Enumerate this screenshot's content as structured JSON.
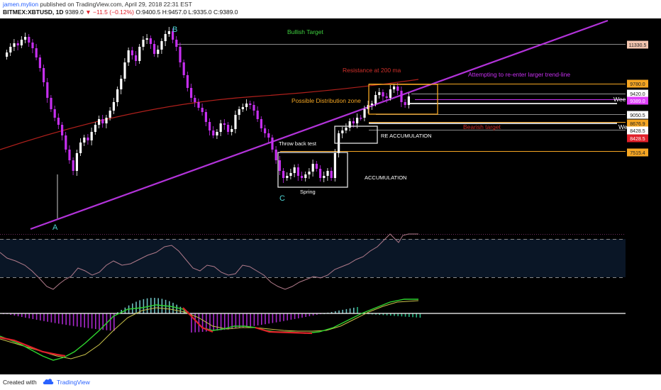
{
  "header": {
    "author": "jamen.mylion",
    "published": "published on TradingView.com, April 29, 2018 22:31 EST",
    "symbol": "BITMEX:XBTUSD, 1D",
    "last": "9389.0",
    "change": "−11.5 (−0.12%)",
    "ohlc": "O:9400.5 H:9457.0 L:9335.0 C:9389.0"
  },
  "annotations": {
    "bullish_target": "Bullish Target",
    "resistance": "Resistance at 200 ma",
    "reenter": "Attempting to re-enter larger trend-line",
    "distribution": "Possible Distribution zone",
    "bearish_target": "Bearish target",
    "re_accumulation": "RE ACCUMULATION",
    "accumulation": "ACCUMULATION",
    "throwback": "Throw back test",
    "spring": "Spring",
    "point_a": "A",
    "point_b": "B",
    "point_c": "C",
    "wee1": "Wee",
    "wee2": "We"
  },
  "price_labels": [
    {
      "text": "11330.5",
      "color": "#f4c6b0"
    },
    {
      "text": "9780.0",
      "color": "#f5a623"
    },
    {
      "text": "9420.0",
      "color": "#ffffff"
    },
    {
      "text": "9389.0",
      "color": "#e040fb"
    },
    {
      "text": "9050.5",
      "color": "#ffffff"
    },
    {
      "text": "8676.9",
      "color": "#f5a623"
    },
    {
      "text": "8428.5",
      "color": "#ffffff"
    },
    {
      "text": "8428.5",
      "color": "#e0202a"
    },
    {
      "text": "7515.4",
      "color": "#f5a623"
    }
  ],
  "colors": {
    "up": "#ffffff",
    "down": "#c62ff0",
    "trendline": "#b233d9",
    "ma200": "#b0201c"
  },
  "footer": {
    "created": "Created with",
    "brand": "TradingView"
  }
}
